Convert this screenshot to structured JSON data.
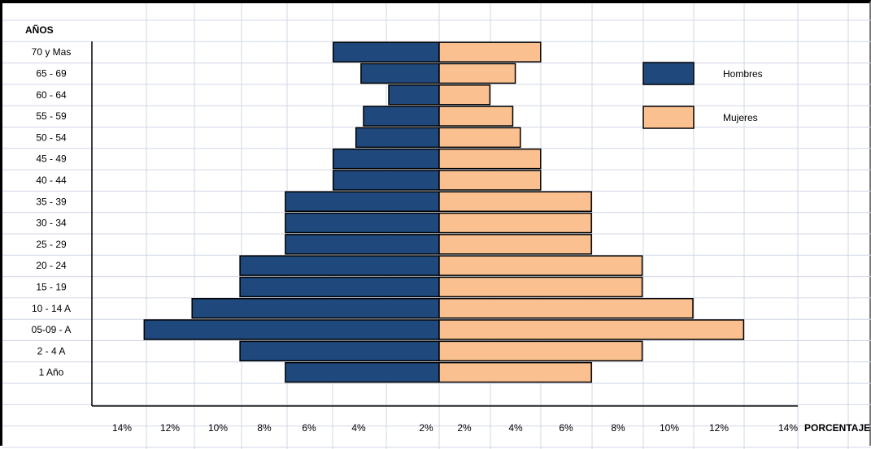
{
  "chart_data": {
    "type": "bar",
    "subtype": "population-pyramid",
    "title": "",
    "ylabel": "AÑOS",
    "xlabel": "PORCENTAJE",
    "categories": [
      "70 y Mas",
      "65 - 69",
      "60 - 64",
      "55 - 59",
      "50 - 54",
      "45 - 49",
      "40 - 44",
      "35 - 39",
      "30 - 34",
      "25 - 29",
      "20 - 24",
      "15 - 19",
      "10 - 14 A",
      "05-09 - A",
      "2 - 4 A",
      "1 Año"
    ],
    "series": [
      {
        "name": "Hombres",
        "color": "#1f497d",
        "side": "left",
        "values": [
          4.2,
          3.1,
          2.0,
          3.0,
          3.3,
          4.2,
          4.2,
          6.1,
          6.1,
          6.1,
          7.9,
          7.9,
          9.8,
          11.7,
          7.9,
          6.1
        ]
      },
      {
        "name": "Mujeres",
        "color": "#fac090",
        "side": "right",
        "values": [
          4.0,
          3.0,
          2.0,
          2.9,
          3.2,
          4.0,
          4.0,
          6.0,
          6.0,
          6.0,
          8.0,
          8.0,
          10.0,
          12.0,
          8.0,
          6.0
        ]
      }
    ],
    "x_tick_labels_left": [
      "14%",
      "12%",
      "10%",
      "8%",
      "6%",
      "4%",
      "2%"
    ],
    "x_tick_labels_right": [
      "2%",
      "4%",
      "6%",
      "8%",
      "10%",
      "12%",
      "14%"
    ],
    "xlim_left": [
      0,
      14
    ],
    "xlim_right": [
      0,
      14
    ],
    "grid": true,
    "legend_position": "right"
  }
}
